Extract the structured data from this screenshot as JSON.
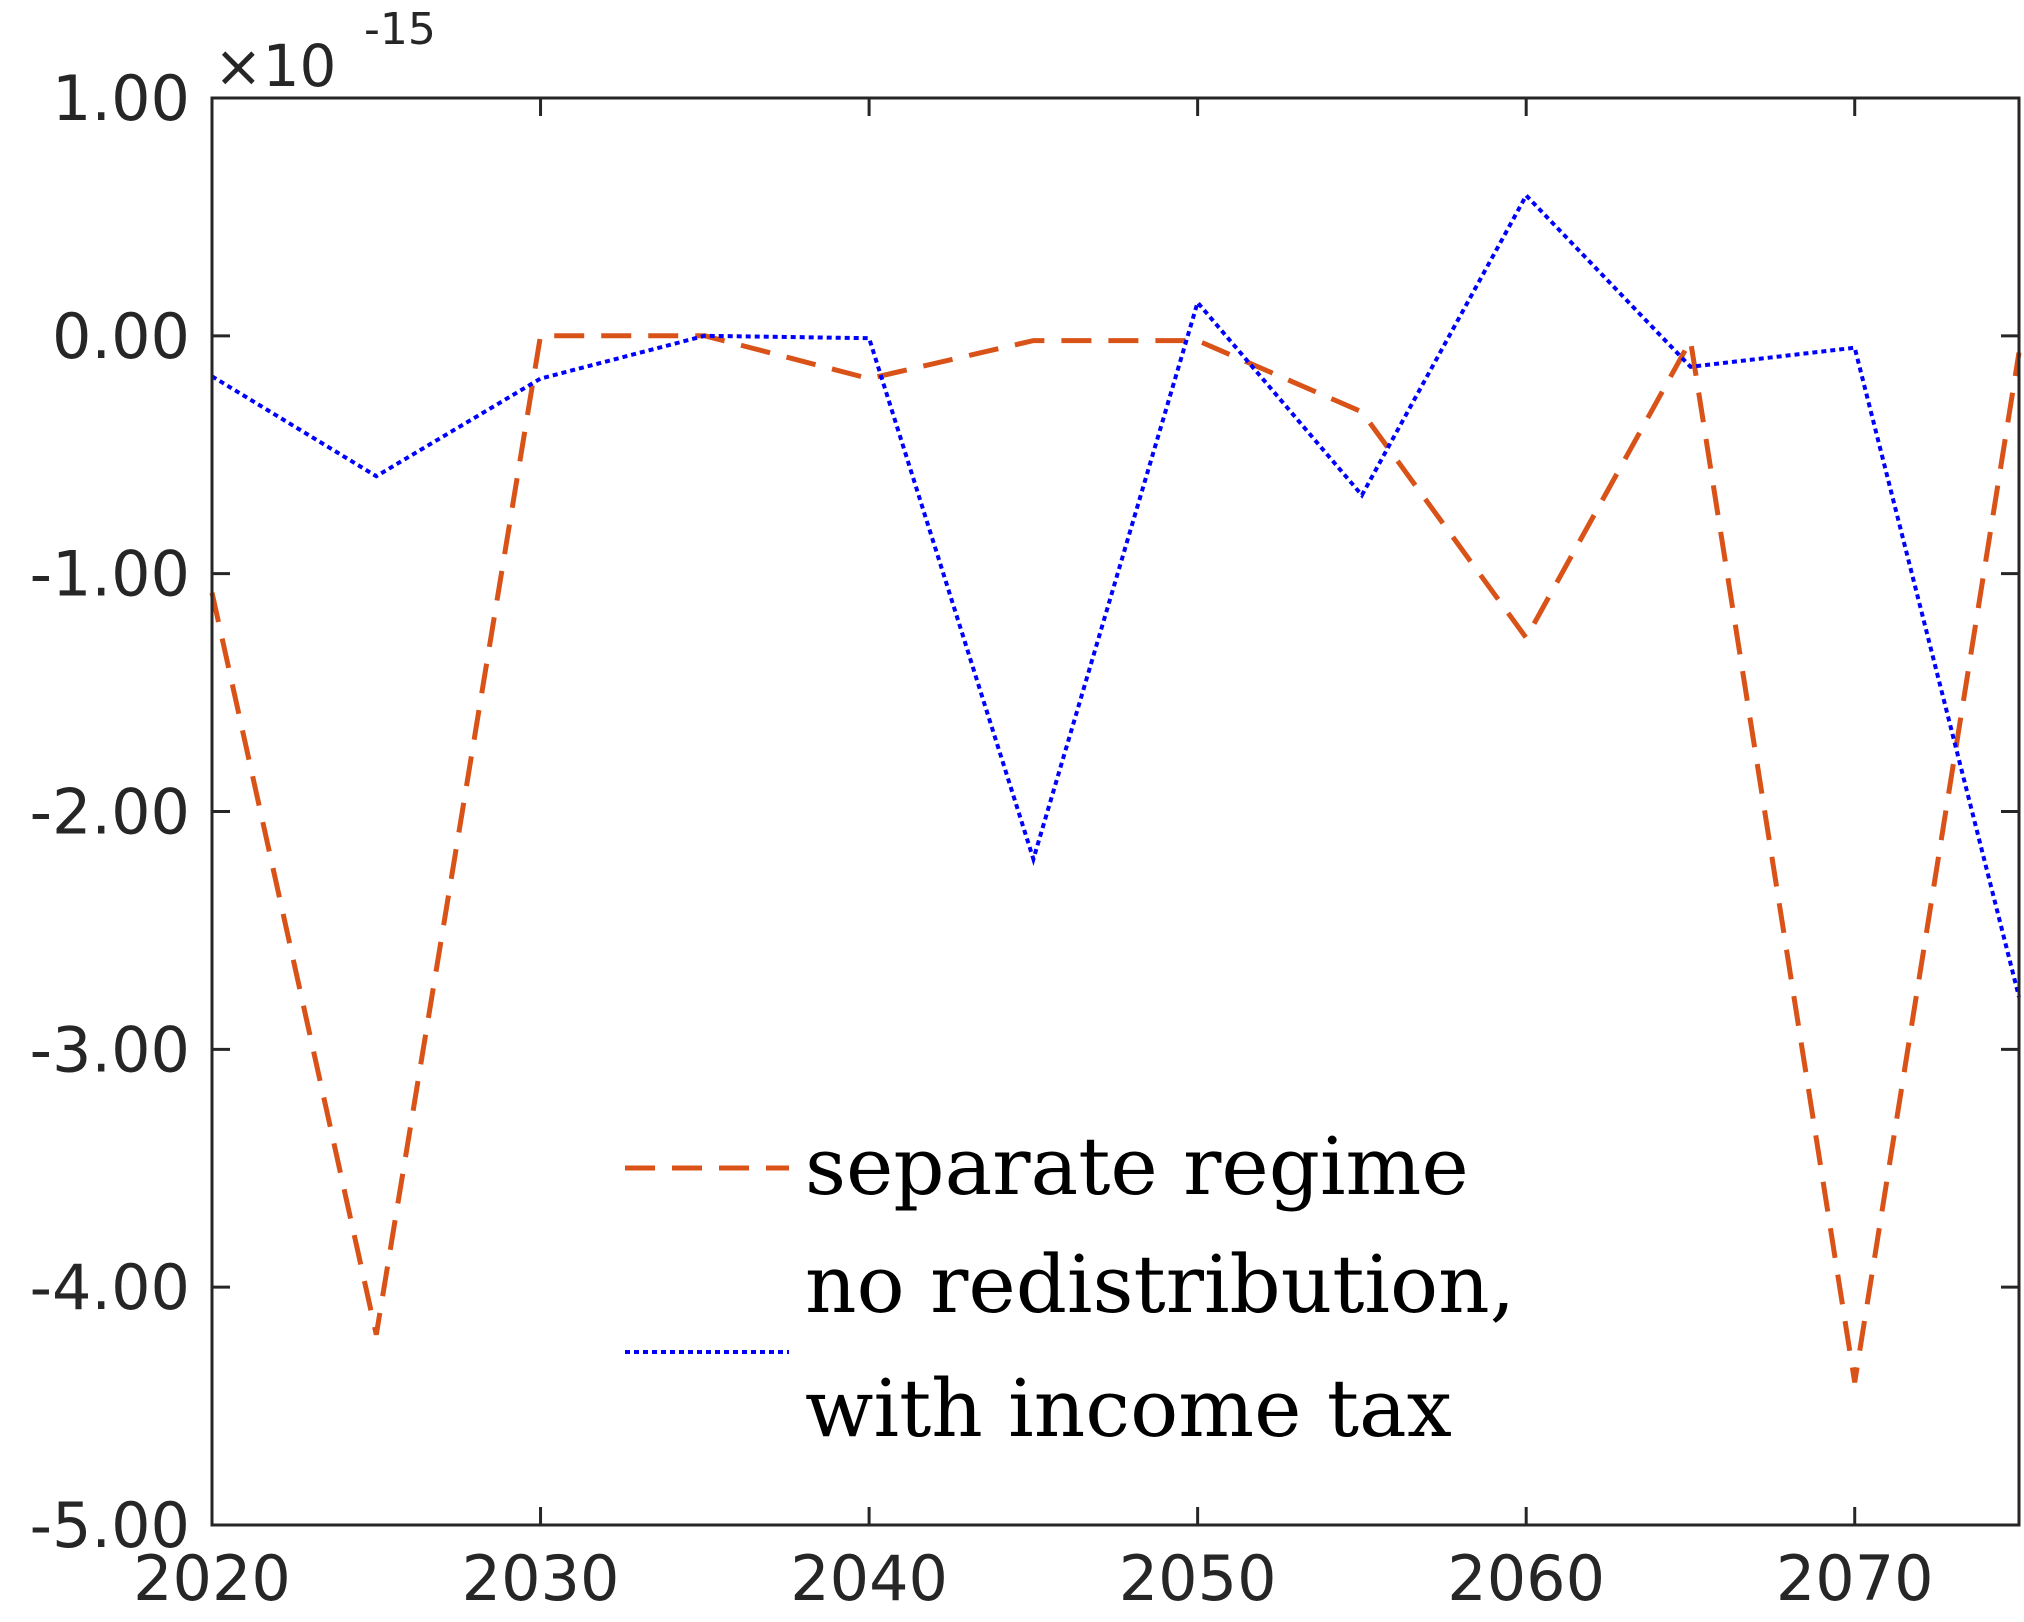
{
  "chart_data": {
    "type": "line",
    "title": "",
    "xlabel": "",
    "ylabel": "",
    "y_exponent_label": "×10",
    "y_exponent_power": "-15",
    "xlim": [
      2020,
      2075
    ],
    "ylim": [
      -5,
      1
    ],
    "x_ticks": [
      2020,
      2030,
      2040,
      2050,
      2060,
      2070
    ],
    "x_tick_labels": [
      "2020",
      "2030",
      "2040",
      "2050",
      "2060",
      "2070"
    ],
    "y_ticks": [
      1,
      0,
      -1,
      -2,
      -3,
      -4,
      -5
    ],
    "y_tick_labels": [
      "1.00",
      "0.00",
      "-1.00",
      "-2.00",
      "-3.00",
      "-4.00",
      "-5.00"
    ],
    "grid": false,
    "legend_position": "bottom-center",
    "x": [
      2020,
      2025,
      2030,
      2035,
      2040,
      2045,
      2050,
      2055,
      2060,
      2065,
      2070,
      2075
    ],
    "series": [
      {
        "name": "separate regime",
        "color": "#D95319",
        "style": "dashed",
        "values": [
          -1.08,
          -4.2,
          0.0,
          0.0,
          -0.18,
          -0.02,
          -0.02,
          -0.32,
          -1.27,
          -0.02,
          -4.4,
          -0.07
        ]
      },
      {
        "name": "no redistribution, with income tax",
        "legend_lines": [
          "no redistribution,",
          "with income tax"
        ],
        "color": "#0000FF",
        "style": "dotted",
        "values": [
          -0.17,
          -0.59,
          -0.18,
          0.0,
          -0.01,
          -2.2,
          0.14,
          -0.67,
          0.59,
          -0.13,
          -0.05,
          -2.78
        ]
      }
    ]
  }
}
